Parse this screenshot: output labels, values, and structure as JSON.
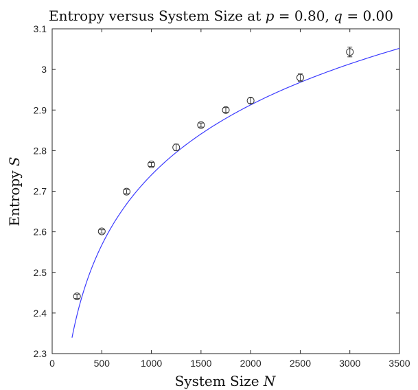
{
  "chart_data": {
    "type": "scatter",
    "title_prefix": "Entropy versus System Size at ",
    "title_p_symbol": "p",
    "title_p_value": " = 0.80, ",
    "title_q_symbol": "q",
    "title_q_value": " = 0.00",
    "xlabel_text": "System Size ",
    "xlabel_symbol": "N",
    "ylabel_text": "Entropy ",
    "ylabel_symbol": "S",
    "xlim": [
      0,
      3500
    ],
    "ylim": [
      2.3,
      3.1
    ],
    "x_ticks": [
      0,
      500,
      1000,
      1500,
      2000,
      2500,
      3000,
      3500
    ],
    "x_tick_labels": [
      "0",
      "500",
      "1000",
      "1500",
      "2000",
      "2500",
      "3000",
      "3500"
    ],
    "y_ticks": [
      2.3,
      2.4,
      2.5,
      2.6,
      2.7,
      2.8,
      2.9,
      3.0,
      3.1
    ],
    "y_tick_labels": [
      "2.3",
      "2.4",
      "2.5",
      "2.6",
      "2.7",
      "2.8",
      "2.9",
      "3",
      "3.1"
    ],
    "grid": false,
    "series": [
      {
        "kind": "errorbar",
        "x": [
          250,
          500,
          750,
          1000,
          1250,
          1500,
          1750,
          2000,
          2500,
          3000
        ],
        "y": [
          2.441,
          2.601,
          2.699,
          2.766,
          2.808,
          2.863,
          2.9,
          2.923,
          2.98,
          3.043
        ],
        "err": [
          0.005,
          0.004,
          0.005,
          0.005,
          0.008,
          0.005,
          0.006,
          0.007,
          0.009,
          0.012
        ],
        "marker": "circle",
        "color": "#333333"
      },
      {
        "kind": "fit",
        "x_range": [
          200,
          3500
        ],
        "coef_a": 1.02,
        "coef_b": 0.249,
        "color": "#3b3bff"
      }
    ]
  }
}
